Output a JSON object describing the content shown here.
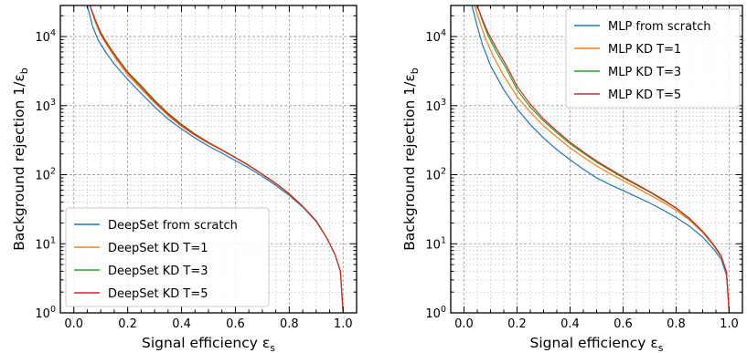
{
  "chart_data": [
    {
      "type": "line",
      "xlabel": "Signal efficiency ε",
      "xlabel_sub": "s",
      "ylabel": "Background rejection 1/ε",
      "ylabel_sub": "b",
      "xlim": [
        -0.05,
        1.05
      ],
      "ylim_exponent": [
        0,
        4.45
      ],
      "yscale": "log",
      "grid": true,
      "x_ticks": [
        "0.0",
        "0.2",
        "0.4",
        "0.6",
        "0.8",
        "1.0"
      ],
      "y_ticks": [
        {
          "base": "10",
          "exp": "0"
        },
        {
          "base": "10",
          "exp": "1"
        },
        {
          "base": "10",
          "exp": "2"
        },
        {
          "base": "10",
          "exp": "3"
        },
        {
          "base": "10",
          "exp": "4"
        }
      ],
      "legend_position": "lower-left",
      "series": [
        {
          "name": "DeepSet from scratch",
          "color": "#1f77b4",
          "x": [
            0.05,
            0.07,
            0.09,
            0.12,
            0.15,
            0.2,
            0.25,
            0.3,
            0.35,
            0.4,
            0.45,
            0.5,
            0.55,
            0.6,
            0.65,
            0.7,
            0.75,
            0.8,
            0.85,
            0.9,
            0.94,
            0.97,
            0.99,
            1.0
          ],
          "y": [
            28000,
            14000,
            9000,
            5800,
            4000,
            2400,
            1500,
            960,
            640,
            460,
            340,
            260,
            205,
            160,
            125,
            95,
            70,
            50,
            34,
            21,
            12,
            7,
            4,
            1
          ]
        },
        {
          "name": "DeepSet KD T=1",
          "color": "#ff7f0e",
          "x": [
            0.06,
            0.08,
            0.1,
            0.13,
            0.16,
            0.2,
            0.25,
            0.3,
            0.35,
            0.4,
            0.45,
            0.5,
            0.55,
            0.6,
            0.65,
            0.7,
            0.75,
            0.8,
            0.85,
            0.9,
            0.94,
            0.97,
            0.99,
            1.0
          ],
          "y": [
            28000,
            16000,
            10500,
            6800,
            4500,
            2800,
            1750,
            1100,
            720,
            500,
            370,
            285,
            225,
            175,
            135,
            101,
            74,
            52,
            35,
            21.5,
            12,
            7,
            4,
            1
          ]
        },
        {
          "name": "DeepSet KD T=3",
          "color": "#2ca02c",
          "x": [
            0.06,
            0.08,
            0.1,
            0.13,
            0.16,
            0.2,
            0.25,
            0.3,
            0.35,
            0.4,
            0.45,
            0.5,
            0.55,
            0.6,
            0.65,
            0.7,
            0.75,
            0.8,
            0.85,
            0.9,
            0.94,
            0.97,
            0.99,
            1.0
          ],
          "y": [
            28000,
            17500,
            11500,
            7400,
            5000,
            3100,
            1950,
            1200,
            780,
            540,
            390,
            295,
            230,
            178,
            137,
            102,
            75,
            53,
            35,
            21.5,
            12,
            7,
            4,
            1
          ]
        },
        {
          "name": "DeepSet KD T=5",
          "color": "#d62728",
          "x": [
            0.06,
            0.08,
            0.1,
            0.13,
            0.16,
            0.2,
            0.25,
            0.3,
            0.35,
            0.4,
            0.45,
            0.5,
            0.55,
            0.6,
            0.65,
            0.7,
            0.75,
            0.8,
            0.85,
            0.9,
            0.94,
            0.97,
            0.99,
            1.0
          ],
          "y": [
            28000,
            17000,
            11000,
            7200,
            4800,
            3000,
            1850,
            1150,
            750,
            520,
            380,
            290,
            228,
            176,
            136,
            102,
            75,
            53,
            35,
            21.5,
            12,
            7,
            4,
            1
          ]
        }
      ]
    },
    {
      "type": "line",
      "xlabel": "Signal efficiency ε",
      "xlabel_sub": "s",
      "ylabel": "Background rejection 1/ε",
      "ylabel_sub": "b",
      "xlim": [
        -0.05,
        1.05
      ],
      "ylim_exponent": [
        0,
        4.45
      ],
      "yscale": "log",
      "grid": true,
      "x_ticks": [
        "0.0",
        "0.2",
        "0.4",
        "0.6",
        "0.8",
        "1.0"
      ],
      "y_ticks": [
        {
          "base": "10",
          "exp": "0"
        },
        {
          "base": "10",
          "exp": "1"
        },
        {
          "base": "10",
          "exp": "2"
        },
        {
          "base": "10",
          "exp": "3"
        },
        {
          "base": "10",
          "exp": "4"
        }
      ],
      "legend_position": "top-right",
      "series": [
        {
          "name": "MLP from scratch",
          "color": "#1f77b4",
          "x": [
            0.03,
            0.05,
            0.07,
            0.1,
            0.15,
            0.2,
            0.25,
            0.3,
            0.35,
            0.4,
            0.45,
            0.5,
            0.55,
            0.6,
            0.65,
            0.7,
            0.75,
            0.8,
            0.85,
            0.9,
            0.94,
            0.97,
            0.99,
            1.0
          ],
          "y": [
            28000,
            14000,
            7500,
            3800,
            1700,
            900,
            530,
            340,
            230,
            165,
            120,
            90,
            72,
            59,
            48,
            39,
            31,
            24,
            18,
            12.5,
            8.5,
            6,
            3.5,
            1
          ]
        },
        {
          "name": "MLP KD T=1",
          "color": "#ff7f0e",
          "x": [
            0.04,
            0.06,
            0.08,
            0.11,
            0.15,
            0.2,
            0.25,
            0.3,
            0.35,
            0.4,
            0.45,
            0.5,
            0.55,
            0.6,
            0.65,
            0.7,
            0.75,
            0.8,
            0.85,
            0.9,
            0.94,
            0.97,
            0.99,
            1.0
          ],
          "y": [
            28000,
            16000,
            9500,
            5200,
            2700,
            1350,
            800,
            510,
            350,
            245,
            180,
            134,
            104,
            82,
            65,
            51,
            40,
            30.5,
            22,
            14.5,
            9.5,
            6.5,
            3.8,
            1
          ]
        },
        {
          "name": "MLP KD T=3",
          "color": "#2ca02c",
          "x": [
            0.05,
            0.07,
            0.09,
            0.12,
            0.16,
            0.2,
            0.25,
            0.3,
            0.35,
            0.4,
            0.45,
            0.5,
            0.55,
            0.6,
            0.65,
            0.7,
            0.75,
            0.8,
            0.85,
            0.9,
            0.94,
            0.97,
            0.99,
            1.0
          ],
          "y": [
            28000,
            16500,
            10500,
            6200,
            3400,
            1700,
            950,
            600,
            405,
            280,
            205,
            152,
            117,
            90,
            71,
            56,
            43,
            32.5,
            23,
            15,
            9.8,
            6.6,
            3.9,
            1
          ]
        },
        {
          "name": "MLP KD T=5",
          "color": "#d62728",
          "x": [
            0.05,
            0.07,
            0.09,
            0.12,
            0.16,
            0.2,
            0.25,
            0.3,
            0.35,
            0.4,
            0.45,
            0.5,
            0.55,
            0.6,
            0.65,
            0.7,
            0.75,
            0.8,
            0.85,
            0.9,
            0.94,
            0.97,
            0.99,
            1.0
          ],
          "y": [
            28000,
            17500,
            11500,
            7000,
            3800,
            1900,
            1050,
            640,
            430,
            295,
            214,
            158,
            121,
            93,
            73,
            57,
            44,
            33,
            23.5,
            15.2,
            9.9,
            6.7,
            3.9,
            1
          ]
        }
      ]
    }
  ]
}
